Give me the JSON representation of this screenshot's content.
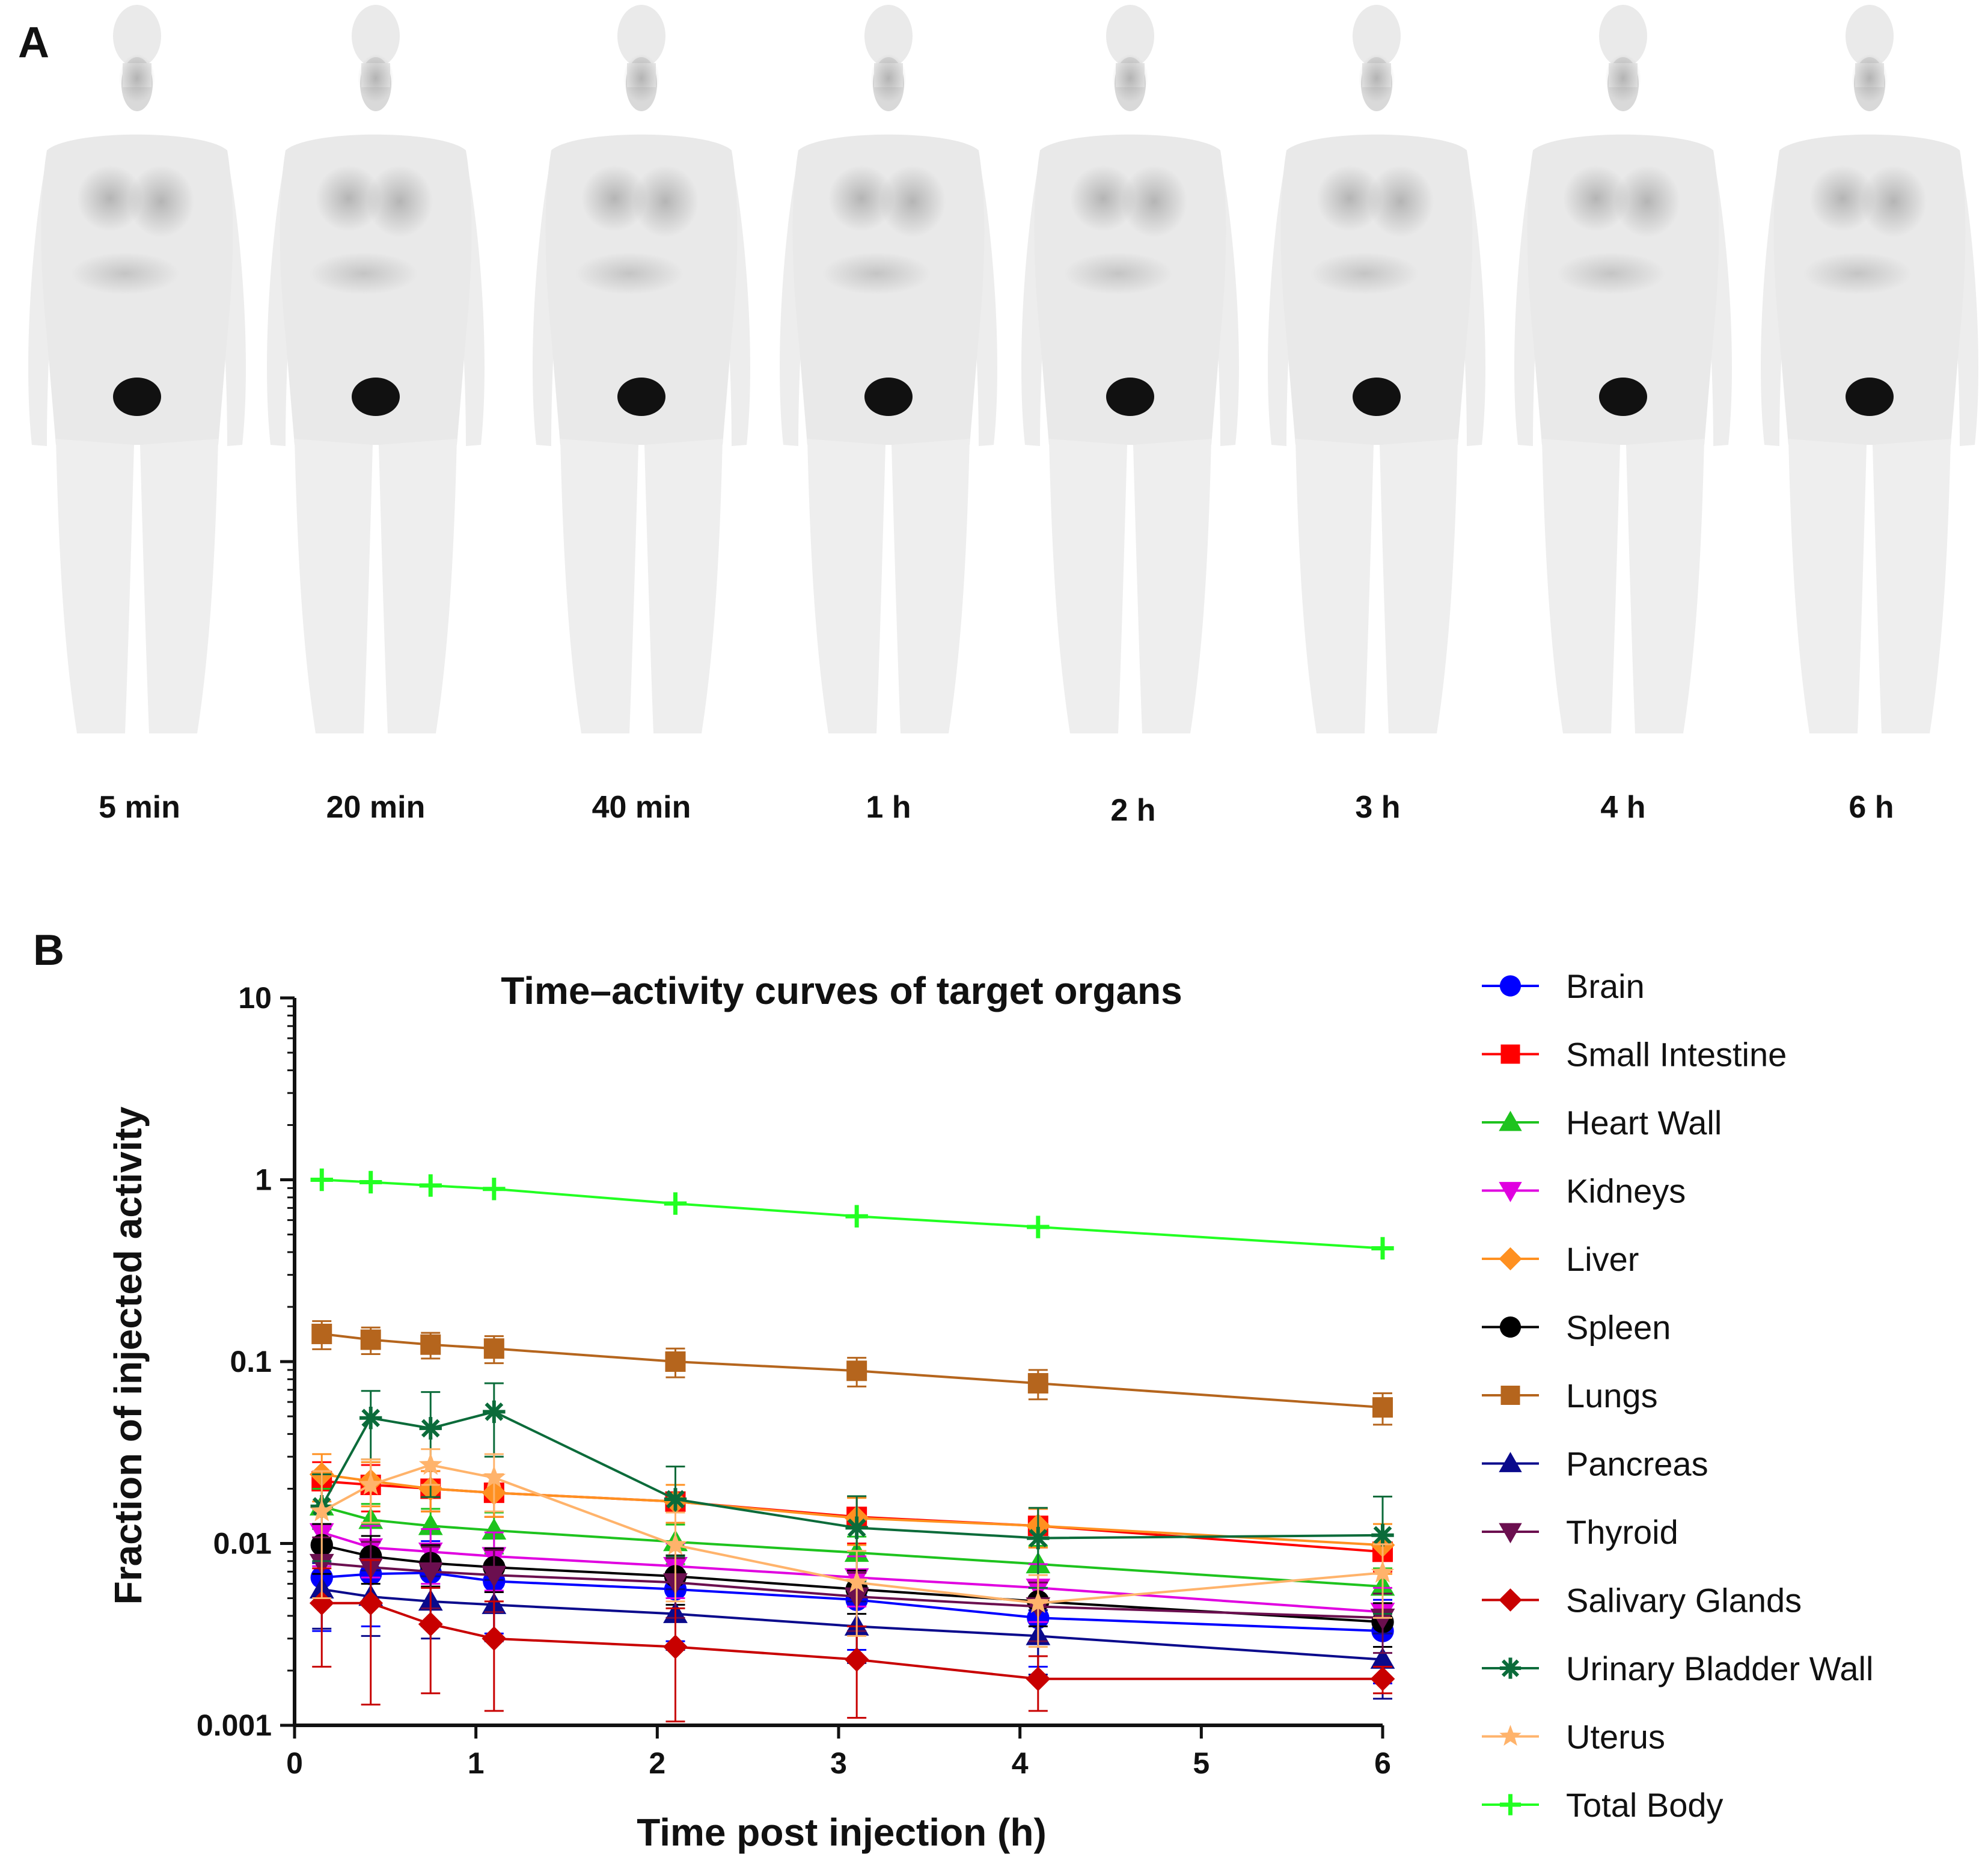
{
  "panels": {
    "a_label": "A",
    "b_label": "B"
  },
  "scan_labels": [
    "5 min",
    "20 min",
    "40 min",
    "1 h",
    "2 h",
    "3 h",
    "4 h",
    "6 h"
  ],
  "chart_data": {
    "type": "line",
    "title": "Time–activity curves of target organs",
    "xlabel": "Time post injection (h)",
    "ylabel": "Fraction of injected activity",
    "yscale": "log",
    "xlim": [
      0,
      6
    ],
    "ylim": [
      0.001,
      10
    ],
    "x_ticks": [
      "0",
      "1",
      "2",
      "3",
      "4",
      "5",
      "6"
    ],
    "y_ticks": [
      "0.001",
      "0.01",
      "0.1",
      "1",
      "10"
    ],
    "grid": false,
    "legend_position": "right",
    "x": [
      0.15,
      0.42,
      0.75,
      1.1,
      2.1,
      3.1,
      4.1,
      6.0
    ],
    "series": [
      {
        "name": "Brain",
        "color": "#0000ff",
        "marker": "circle",
        "values": [
          0.0065,
          0.0068,
          0.0069,
          0.0062,
          0.0056,
          0.0049,
          0.0039,
          0.0033
        ],
        "err": [
          0.0032,
          0.0033,
          0.0034,
          0.003,
          0.0027,
          0.0023,
          0.0018,
          0.0016
        ]
      },
      {
        "name": "Small Intestine",
        "color": "#ff0000",
        "marker": "square",
        "values": [
          0.022,
          0.021,
          0.02,
          0.019,
          0.017,
          0.014,
          0.0125,
          0.009
        ],
        "err": [
          0.006,
          0.006,
          0.005,
          0.005,
          0.004,
          0.004,
          0.003,
          0.002
        ]
      },
      {
        "name": "Heart Wall",
        "color": "#1ec31e",
        "marker": "triangle-up",
        "values": [
          0.016,
          0.0135,
          0.0125,
          0.0118,
          0.0102,
          0.0089,
          0.0077,
          0.0058
        ],
        "err": [
          0.004,
          0.003,
          0.003,
          0.003,
          0.0025,
          0.002,
          0.002,
          0.0015
        ]
      },
      {
        "name": "Kidneys",
        "color": "#e000e0",
        "marker": "triangle-down",
        "values": [
          0.0115,
          0.0095,
          0.009,
          0.0085,
          0.0075,
          0.0065,
          0.0057,
          0.0042
        ],
        "err": [
          0.004,
          0.003,
          0.003,
          0.003,
          0.0025,
          0.002,
          0.002,
          0.0015
        ]
      },
      {
        "name": "Liver",
        "color": "#ff9020",
        "marker": "diamond",
        "values": [
          0.024,
          0.022,
          0.02,
          0.019,
          0.017,
          0.0138,
          0.0125,
          0.0098
        ],
        "err": [
          0.007,
          0.006,
          0.005,
          0.005,
          0.004,
          0.004,
          0.003,
          0.003
        ]
      },
      {
        "name": "Spleen",
        "color": "#000000",
        "marker": "circle",
        "values": [
          0.0098,
          0.0085,
          0.0078,
          0.0074,
          0.0066,
          0.0056,
          0.0048,
          0.0037
        ],
        "err": [
          0.003,
          0.0025,
          0.002,
          0.002,
          0.002,
          0.0015,
          0.0013,
          0.001
        ]
      },
      {
        "name": "Lungs",
        "color": "#b5651d",
        "marker": "square",
        "values": [
          0.142,
          0.132,
          0.124,
          0.118,
          0.1,
          0.089,
          0.076,
          0.056
        ],
        "err": [
          0.025,
          0.022,
          0.02,
          0.02,
          0.018,
          0.016,
          0.014,
          0.011
        ]
      },
      {
        "name": "Pancreas",
        "color": "#0a0a8c",
        "marker": "triangle-up",
        "values": [
          0.0056,
          0.0051,
          0.0048,
          0.0046,
          0.0041,
          0.0035,
          0.0031,
          0.0023
        ],
        "err": [
          0.0022,
          0.002,
          0.0018,
          0.0017,
          0.0015,
          0.0013,
          0.0012,
          0.0009
        ]
      },
      {
        "name": "Thyroid",
        "color": "#6b0f4f",
        "marker": "triangle-down",
        "values": [
          0.0078,
          0.0074,
          0.007,
          0.0067,
          0.0061,
          0.0051,
          0.0045,
          0.0039
        ],
        "err": [
          0.003,
          0.0028,
          0.0026,
          0.0025,
          0.0022,
          0.0018,
          0.0016,
          0.0014
        ]
      },
      {
        "name": "Salivary Glands",
        "color": "#c80000",
        "marker": "diamond",
        "values": [
          0.0047,
          0.0047,
          0.0036,
          0.003,
          0.0027,
          0.0023,
          0.0018,
          0.0018
        ],
        "err": [
          0.0026,
          0.0034,
          0.0021,
          0.0018,
          0.0017,
          0.0012,
          0.0006,
          0.0003
        ]
      },
      {
        "name": "Urinary Bladder Wall",
        "color": "#0b6b3a",
        "marker": "asterisk",
        "values": [
          0.016,
          0.049,
          0.043,
          0.053,
          0.0175,
          0.0122,
          0.0107,
          0.0111
        ],
        "err": [
          0.008,
          0.02,
          0.025,
          0.023,
          0.009,
          0.006,
          0.005,
          0.007
        ]
      },
      {
        "name": "Uterus",
        "color": "#ffb36b",
        "marker": "star",
        "values": [
          0.015,
          0.021,
          0.027,
          0.023,
          0.0098,
          0.0061,
          0.0047,
          0.0069
        ],
        "err": [
          0.01,
          0.008,
          0.006,
          0.008,
          0.005,
          0.003,
          0.002,
          0.003
        ]
      },
      {
        "name": "Total Body",
        "color": "#22ff22",
        "marker": "plus",
        "values": [
          1.0,
          0.97,
          0.93,
          0.89,
          0.74,
          0.63,
          0.55,
          0.42
        ],
        "err": [
          0,
          0,
          0,
          0,
          0,
          0,
          0,
          0
        ]
      }
    ]
  }
}
